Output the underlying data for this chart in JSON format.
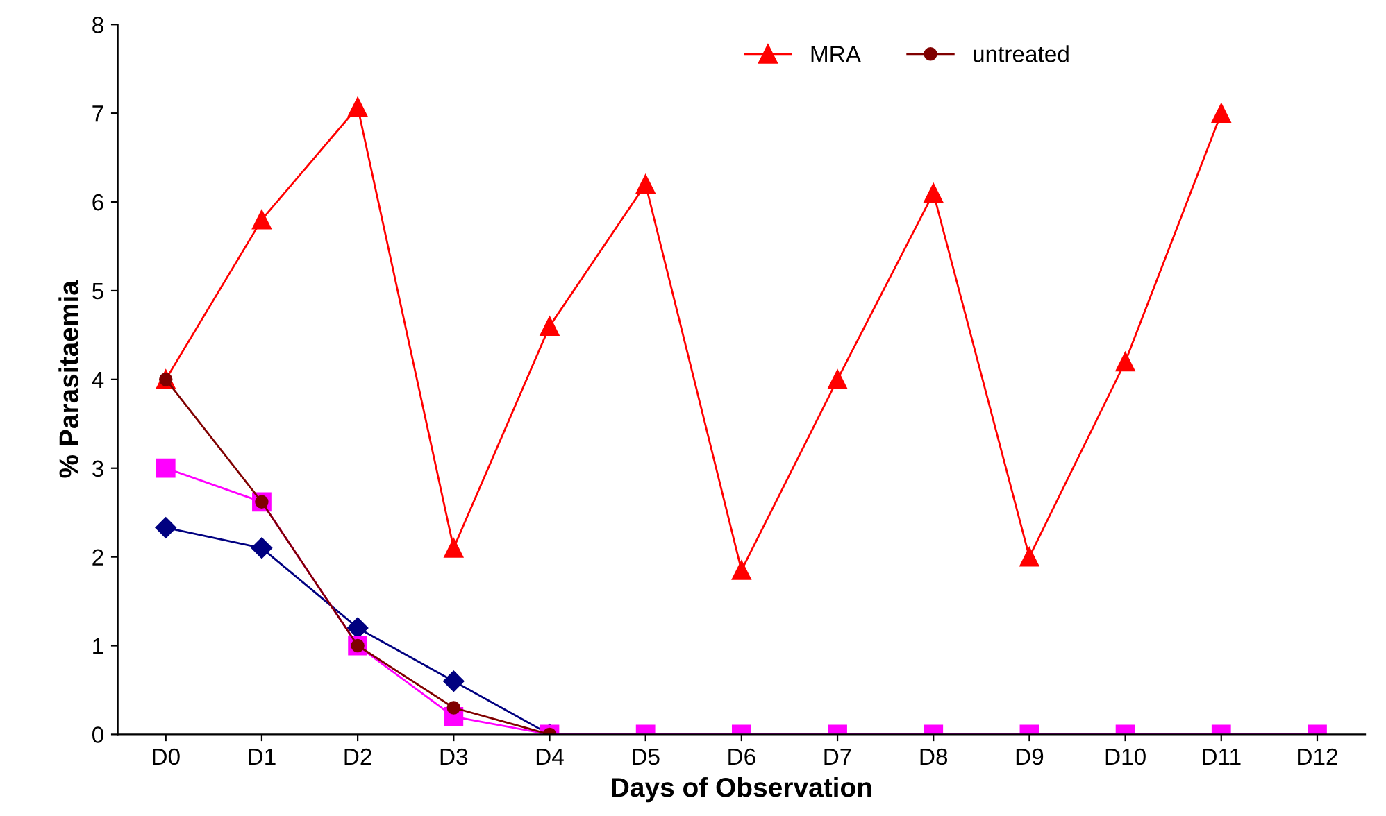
{
  "chart_data": {
    "type": "line",
    "xlabel": "Days of Observation",
    "ylabel": "% Parasitaemia",
    "categories": [
      "D0",
      "D1",
      "D2",
      "D3",
      "D4",
      "D5",
      "D6",
      "D7",
      "D8",
      "D9",
      "D10",
      "D11",
      "D12"
    ],
    "series": [
      {
        "color": "#000080",
        "marker": "diamond",
        "values": [
          2.33,
          2.1,
          1.2,
          0.6,
          0,
          null,
          null,
          null,
          null,
          null,
          null,
          null,
          null
        ]
      },
      {
        "color": "#ff00ff",
        "marker": "square",
        "values": [
          3.0,
          2.62,
          1.0,
          0.2,
          0,
          0,
          0,
          0,
          0,
          0,
          0,
          0,
          0
        ]
      },
      {
        "name": "MRA",
        "color": "#ff0000",
        "marker": "triangle",
        "values": [
          4.0,
          5.8,
          7.07,
          2.1,
          4.6,
          6.2,
          1.85,
          4.0,
          6.1,
          2.0,
          4.2,
          7.0,
          null
        ]
      },
      {
        "name": "untreated",
        "color": "#800000",
        "marker": "circle",
        "values": [
          4.0,
          2.62,
          1.0,
          0.3,
          0,
          null,
          null,
          null,
          null,
          null,
          null,
          null,
          null
        ]
      }
    ],
    "ylim": [
      0,
      8
    ],
    "yticks": [
      0,
      1,
      2,
      3,
      4,
      5,
      6,
      7,
      8
    ],
    "grid": false,
    "legend": "top right"
  }
}
